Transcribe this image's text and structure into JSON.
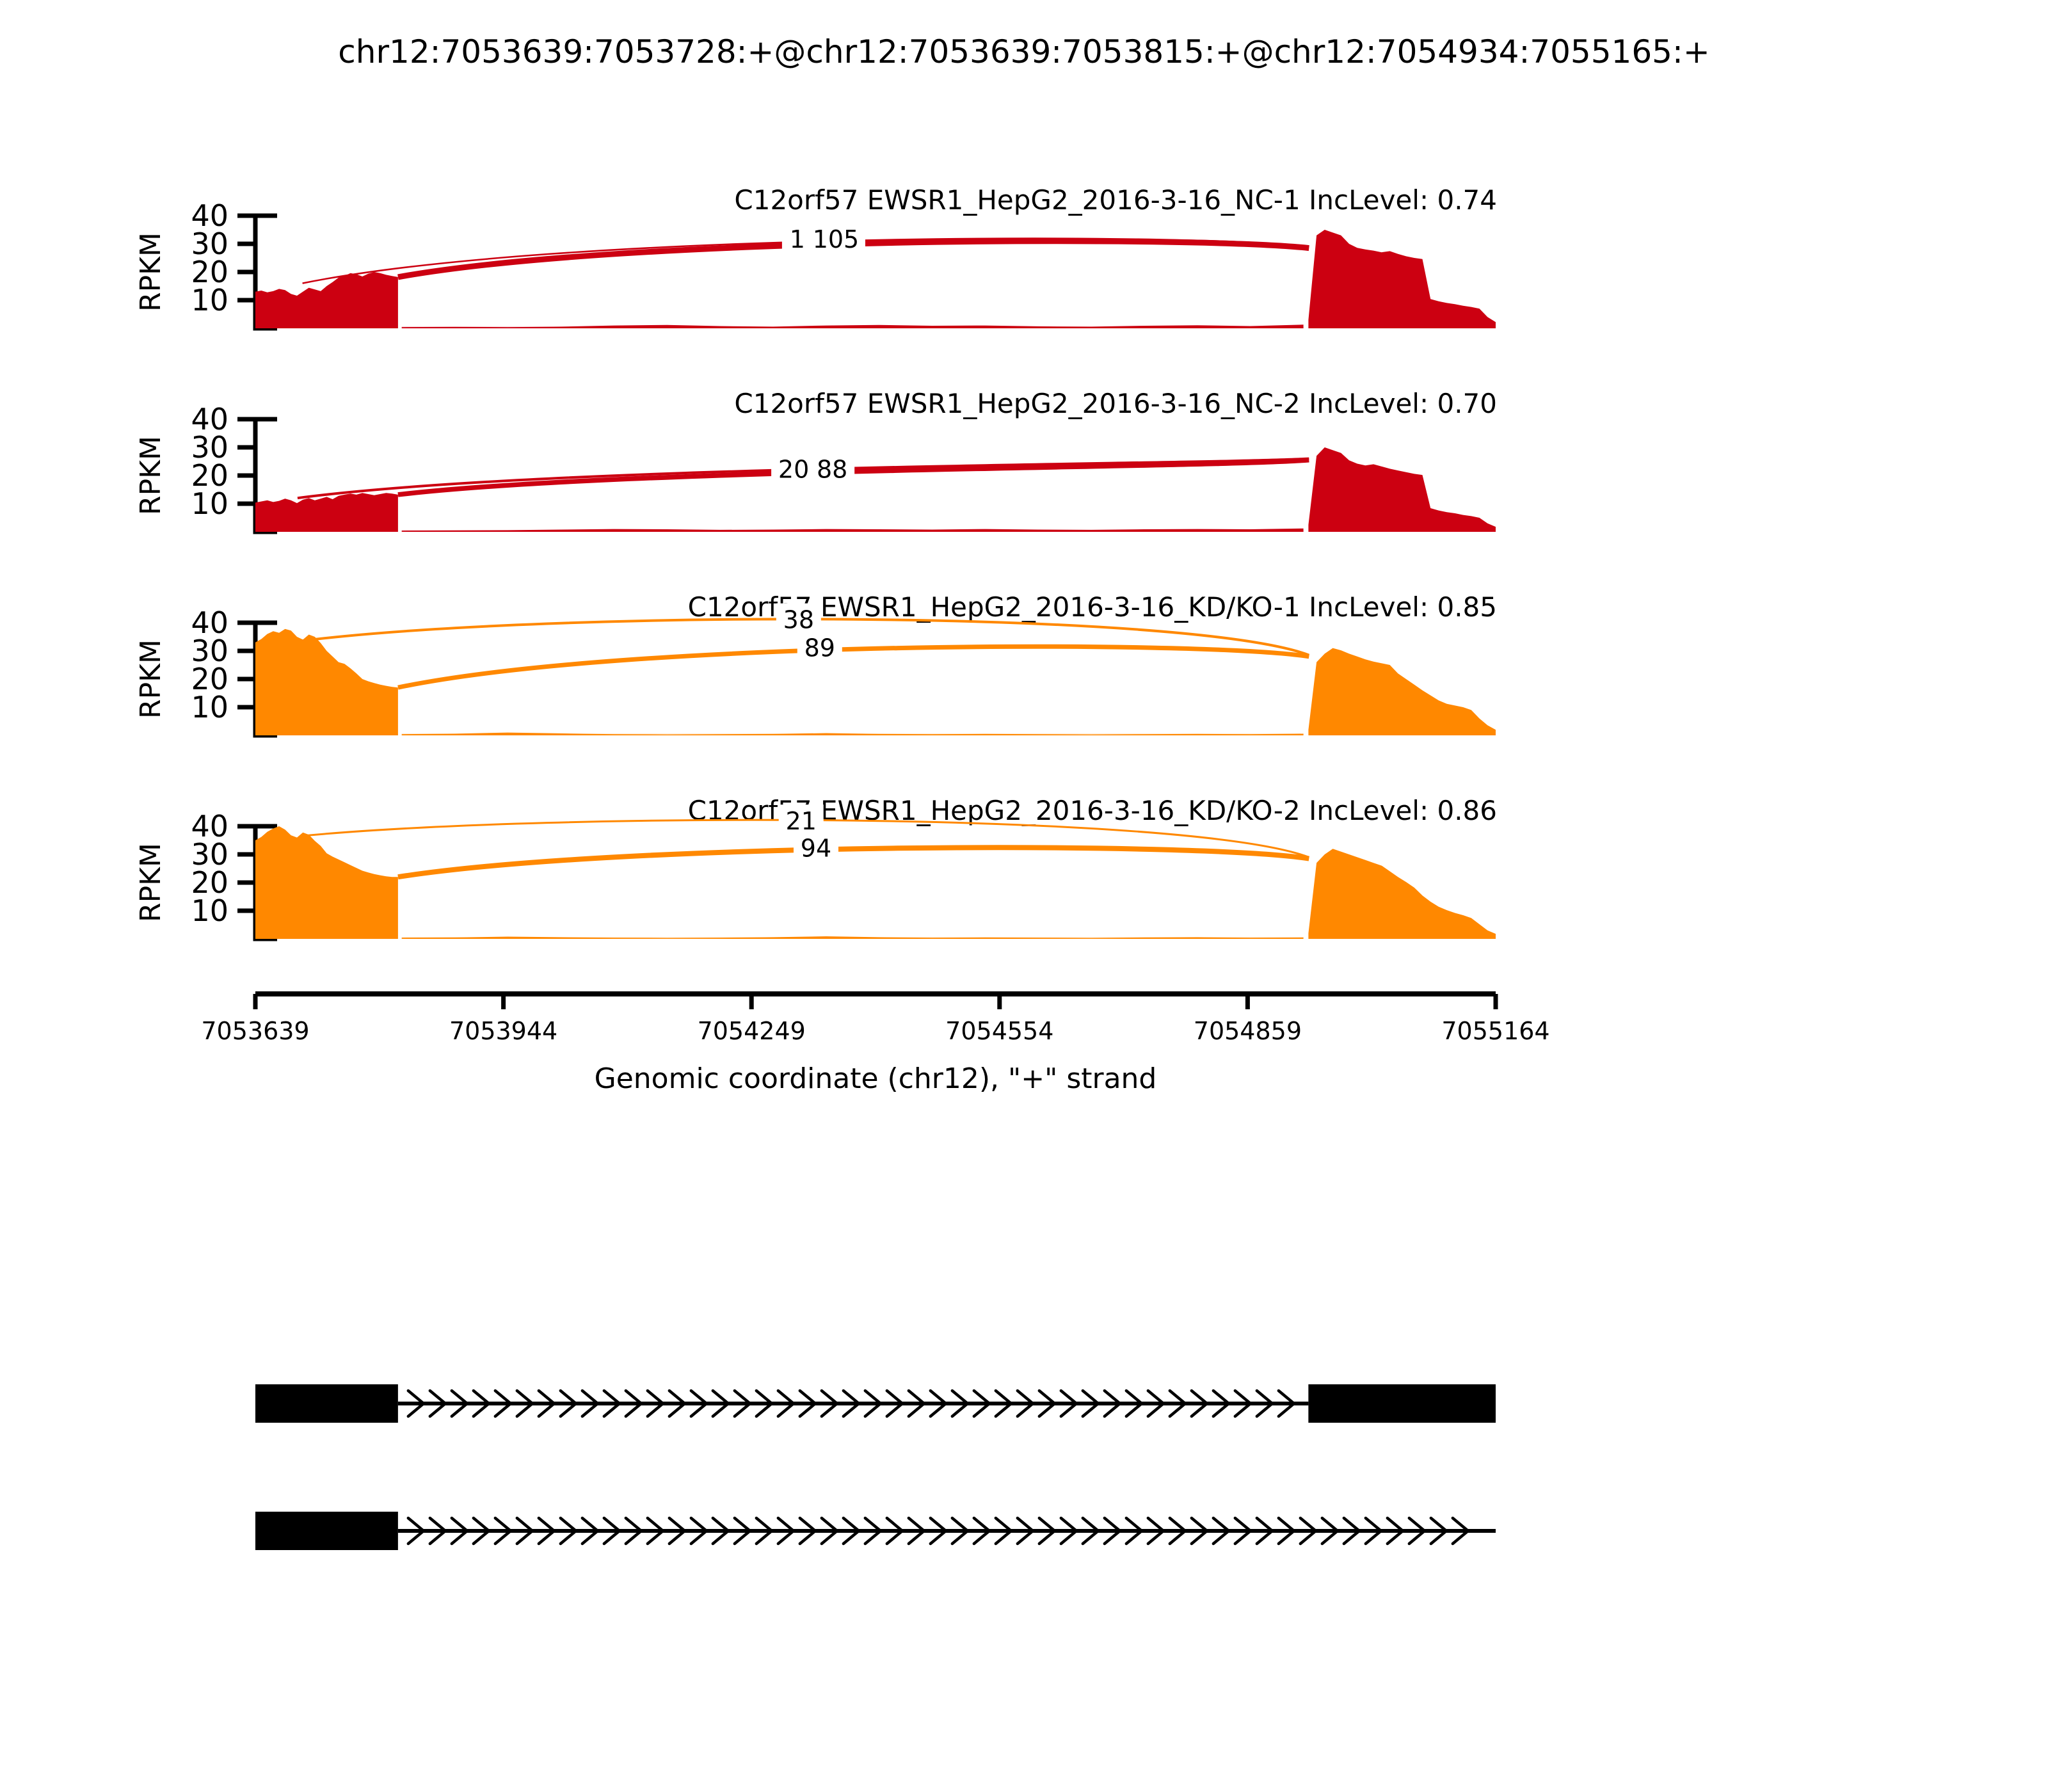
{
  "title": "chr12:7053639:7053728:+@chr12:7053639:7053815:+@chr12:7054934:7055165:+",
  "colors": {
    "sample1": "#CC0011",
    "sample2": "#FF8800",
    "annotation": "#000000",
    "background": "#FFFFFF"
  },
  "chart_data": {
    "type": "area",
    "subtype": "rmats-sashimi",
    "gene": "C12orf57",
    "ylabel": "RPKM",
    "xlabel": "Genomic coordinate (chr12), \"+\" strand",
    "ylim": [
      0,
      40
    ],
    "yticks": [
      10,
      20,
      30,
      40
    ],
    "xticks": [
      "7053639",
      "7053944",
      "7054249",
      "7054554",
      "7054859",
      "7055164"
    ],
    "xrange": [
      7053639,
      7055164
    ],
    "strand": "+",
    "tracks": [
      {
        "label": "C12orf57 EWSR1_HepG2_2016-3-16_NC-1 IncLevel: 0.74",
        "sample": "EWSR1_HepG2_2016-3-16_NC-1",
        "inc_level": 0.74,
        "color": "#CC0011",
        "junctions": [
          {
            "reads": 1,
            "x1": 0.038,
            "y1": 16.0,
            "x2": 0.8495,
            "y2": 29.0,
            "apex": 31.2,
            "width": 2.5,
            "label_x": 0.437,
            "label_y": 31.8
          },
          {
            "reads": 105,
            "x1": 0.115,
            "y1": 18.2,
            "x2": 0.8495,
            "y2": 28.5,
            "apex": 30.4,
            "width": 9,
            "label_x": 0.468,
            "label_y": 31.8
          }
        ],
        "coverage": {
          "left_exon": {
            "x0": 0.0,
            "x1": 0.115,
            "v": [
              13,
              13.4,
              12.8,
              13.2,
              14,
              13.6,
              12.2,
              11.6,
              13,
              14.4,
              13.8,
              13.2,
              15,
              16.4,
              18,
              18.6,
              19.6,
              19.2,
              18.4,
              19.4,
              20,
              19.6,
              19,
              18.6,
              18.2
            ]
          },
          "intron": {
            "x0": 0.118,
            "x1": 0.845,
            "v": [
              0.4,
              0.5,
              0.4,
              0.6,
              1,
              1.2,
              0.8,
              0.6,
              1,
              1.2,
              0.9,
              1,
              0.7,
              0.6,
              0.9,
              1.1,
              0.8,
              1.3
            ]
          },
          "right_exon": {
            "x0": 0.849,
            "x1": 1.0,
            "v": [
              3,
              33,
              35,
              34,
              33,
              30,
              28.6,
              28,
              27.6,
              27,
              27.4,
              26.4,
              25.6,
              25,
              24.6,
              10.4,
              9.6,
              9,
              8.6,
              8,
              7.6,
              7,
              4,
              2.2
            ]
          }
        }
      },
      {
        "label": "C12orf57 EWSR1_HepG2_2016-3-16_NC-2 IncLevel: 0.70",
        "sample": "EWSR1_HepG2_2016-3-16_NC-2",
        "inc_level": 0.7,
        "color": "#CC0011",
        "junctions": [
          {
            "reads": 20,
            "x1": 0.034,
            "y1": 12.0,
            "x2": 0.8495,
            "y2": 26.0,
            "apex": 22.6,
            "width": 4,
            "label_x": 0.434,
            "label_y": 22.4
          },
          {
            "reads": 88,
            "x1": 0.115,
            "y1": 13.2,
            "x2": 0.8495,
            "y2": 25.5,
            "apex": 21.8,
            "width": 7.5,
            "label_x": 0.465,
            "label_y": 22.4
          }
        ],
        "coverage": {
          "left_exon": {
            "x0": 0.0,
            "x1": 0.115,
            "v": [
              10.4,
              10.8,
              11.2,
              10.6,
              11,
              11.8,
              11.2,
              10.2,
              11.4,
              12,
              11.2,
              11.8,
              12.4,
              11.6,
              12.8,
              13.2,
              13.6,
              13.2,
              13.8,
              13.4,
              13,
              13.4,
              13.8,
              13.6,
              13.2
            ]
          },
          "intron": {
            "x0": 0.118,
            "x1": 0.845,
            "v": [
              0.4,
              0.5,
              0.6,
              0.8,
              1,
              0.9,
              0.7,
              0.8,
              1,
              0.9,
              0.8,
              1,
              0.8,
              0.7,
              0.9,
              1,
              0.9,
              1.2
            ]
          },
          "right_exon": {
            "x0": 0.849,
            "x1": 1.0,
            "v": [
              2.5,
              27,
              30,
              29,
              28,
              25.4,
              24.2,
              23.6,
              24,
              23.2,
              22.4,
              21.8,
              21.2,
              20.6,
              20.2,
              8.4,
              7.6,
              7,
              6.6,
              6,
              5.6,
              5,
              3,
              1.8
            ]
          }
        }
      },
      {
        "label": "C12orf57 EWSR1_HepG2_2016-3-16_KD/KO-1 IncLevel: 0.85",
        "sample": "EWSR1_HepG2_2016-3-16_KD/KO-1",
        "inc_level": 0.85,
        "color": "#FF8800",
        "junctions": [
          {
            "reads": 38,
            "x1": 0.036,
            "y1": 33.5,
            "x2": 0.8495,
            "y2": 28.5,
            "apex": 41.2,
            "width": 4,
            "label_x": 0.438,
            "label_y": 41.2
          },
          {
            "reads": 89,
            "x1": 0.115,
            "y1": 17.0,
            "x2": 0.8495,
            "y2": 28.0,
            "apex": 31.0,
            "width": 7,
            "label_x": 0.455,
            "label_y": 31.3
          }
        ],
        "coverage": {
          "left_exon": {
            "x0": 0.0,
            "x1": 0.115,
            "v": [
              33,
              34.2,
              36,
              37,
              36.4,
              37.8,
              37.2,
              35,
              34,
              35.8,
              35,
              32.8,
              30,
              28,
              26,
              25.4,
              23.8,
              22,
              20,
              19.2,
              18.6,
              18,
              17.6,
              17.2,
              17
            ]
          },
          "intron": {
            "x0": 0.118,
            "x1": 0.845,
            "v": [
              0.4,
              0.6,
              1,
              0.7,
              0.4,
              0.3,
              0.4,
              0.5,
              0.8,
              0.5,
              0.4,
              0.5,
              0.4,
              0.3,
              0.4,
              0.5,
              0.4,
              0.6
            ]
          },
          "right_exon": {
            "x0": 0.849,
            "x1": 1.0,
            "v": [
              2,
              26,
              29,
              31,
              30.2,
              29,
              28,
              27,
              26.2,
              25.6,
              25,
              22,
              20,
              18,
              16,
              14.2,
              12.4,
              11.2,
              10.6,
              10,
              9,
              6,
              3.6,
              2
            ]
          }
        }
      },
      {
        "label": "C12orf57 EWSR1_HepG2_2016-3-16_KD/KO-2 IncLevel: 0.86",
        "sample": "EWSR1_HepG2_2016-3-16_KD/KO-2",
        "inc_level": 0.86,
        "color": "#FF8800",
        "junctions": [
          {
            "reads": 21,
            "x1": 0.036,
            "y1": 36.5,
            "x2": 0.8495,
            "y2": 29.0,
            "apex": 42.0,
            "width": 3,
            "label_x": 0.44,
            "label_y": 42.0
          },
          {
            "reads": 94,
            "x1": 0.115,
            "y1": 22.0,
            "x2": 0.8495,
            "y2": 28.5,
            "apex": 32.2,
            "width": 8,
            "label_x": 0.452,
            "label_y": 32.4
          }
        ],
        "coverage": {
          "left_exon": {
            "x0": 0.0,
            "x1": 0.115,
            "v": [
              35,
              36.2,
              38,
              39.2,
              40,
              38.8,
              36.8,
              36,
              37.8,
              37,
              34.8,
              33,
              30.4,
              29.2,
              28.2,
              27.2,
              26.2,
              25.2,
              24.2,
              23.6,
              23,
              22.6,
              22.2,
              22,
              22
            ]
          },
          "intron": {
            "x0": 0.118,
            "x1": 0.845,
            "v": [
              0.4,
              0.5,
              0.8,
              0.6,
              0.4,
              0.3,
              0.4,
              0.6,
              0.9,
              0.6,
              0.4,
              0.5,
              0.4,
              0.3,
              0.5,
              0.6,
              0.4,
              0.5
            ]
          },
          "right_exon": {
            "x0": 0.849,
            "x1": 1.0,
            "v": [
              2,
              27,
              30,
              32,
              31,
              30,
              29,
              28,
              27,
              26,
              24,
              22,
              20.2,
              18.2,
              15.4,
              13.2,
              11.4,
              10.2,
              9.2,
              8.4,
              7.4,
              5.2,
              3,
              1.8
            ]
          }
        }
      }
    ],
    "isoforms": [
      {
        "exons_bp": [
          [
            7053639,
            7053815
          ],
          [
            7054934,
            7055164
          ]
        ],
        "exons_frac": [
          [
            0.0,
            0.115
          ],
          [
            0.849,
            1.0
          ]
        ],
        "line": [
          0.115,
          0.849
        ],
        "arrows_end": 0.842
      },
      {
        "exons_bp": [
          [
            7053639,
            7053815
          ]
        ],
        "exons_frac": [
          [
            0.0,
            0.115
          ]
        ],
        "line": [
          0.115,
          1.0
        ],
        "arrows_end": 0.978
      }
    ]
  }
}
